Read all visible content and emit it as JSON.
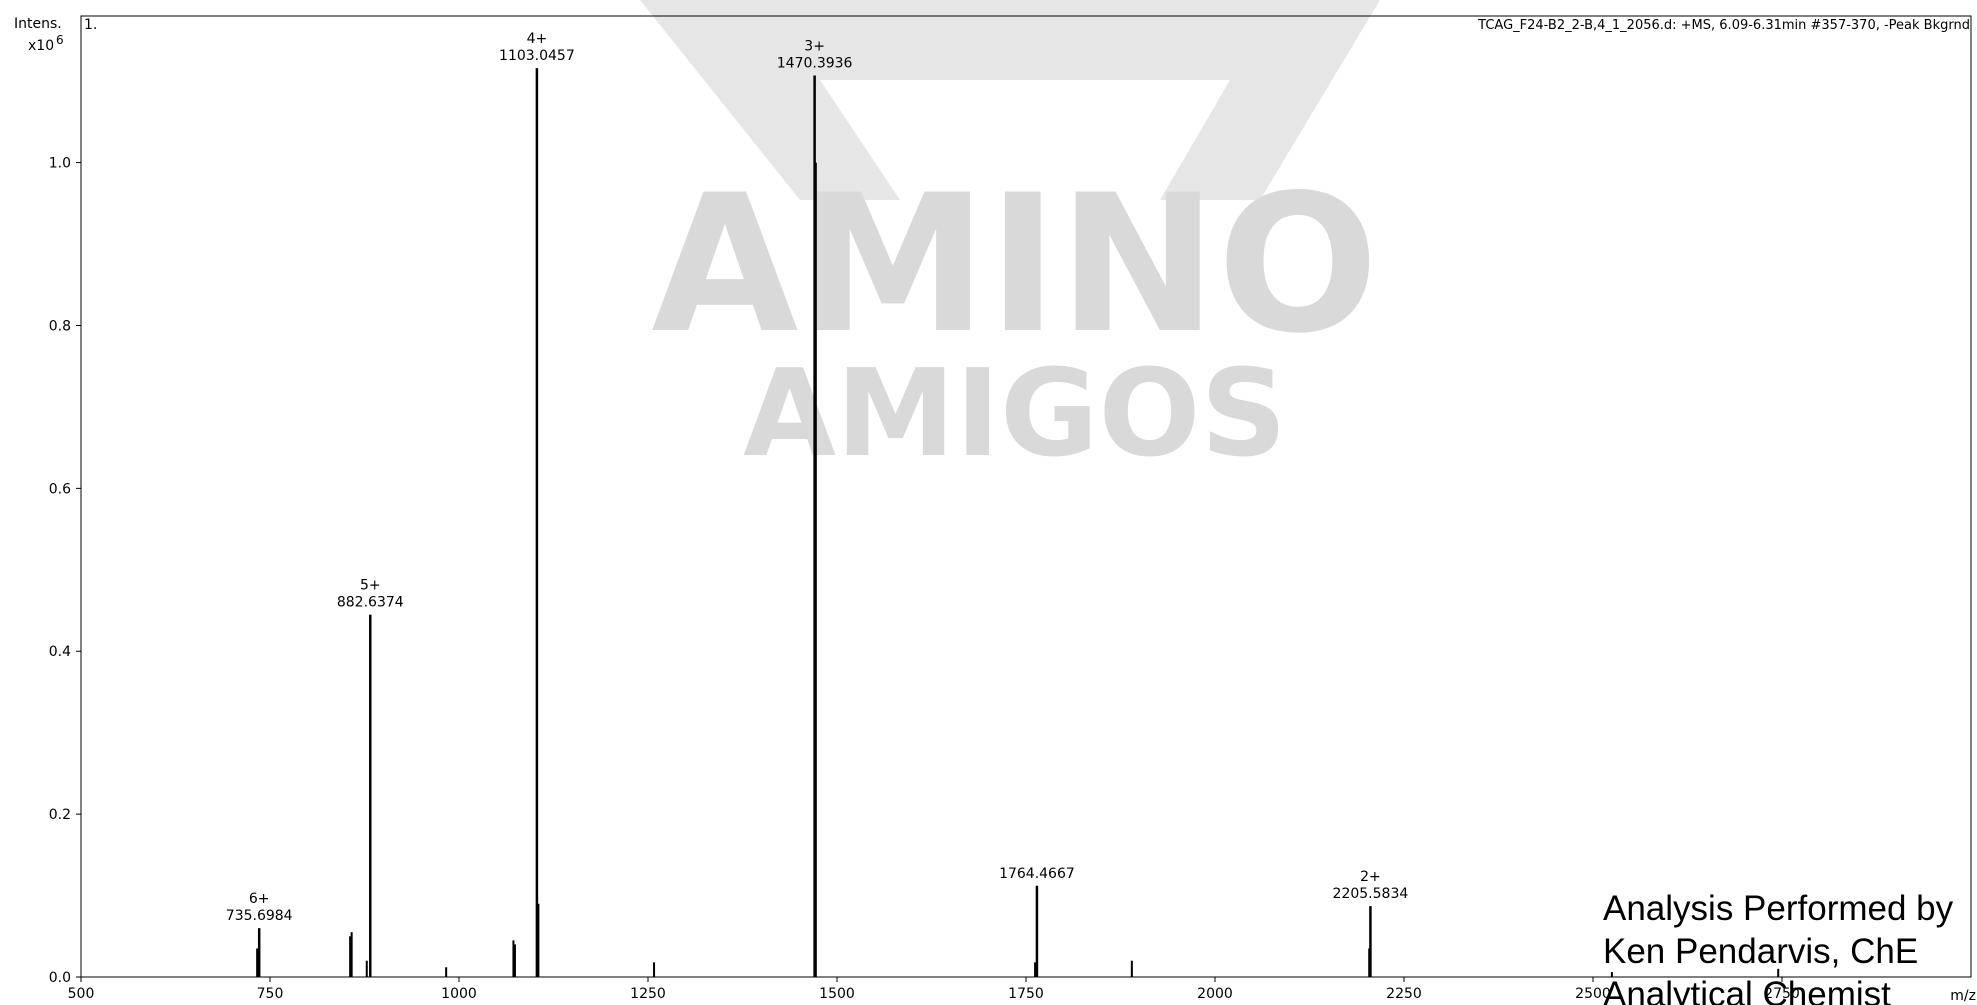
{
  "chart_data": {
    "type": "stem",
    "header": "TCAG_F24-B2_2-B,4_1_2056.d: +MS, 6.09-6.31min #357-370, -Peak Bkgrnd",
    "trace_label": "1.",
    "y_label": "Intens.",
    "y_multiplier": "x10",
    "y_exponent": "6",
    "x_label": "m/z",
    "color": "#000000",
    "xlim": [
      500,
      3000
    ],
    "ylim": [
      0,
      1.18
    ],
    "xticks": [
      500,
      750,
      1000,
      1250,
      1500,
      1750,
      2000,
      2250,
      2500,
      2750
    ],
    "yticks": [
      {
        "value": 0,
        "label": "0.0"
      },
      0.2,
      0.4,
      0.6,
      0.8,
      {
        "value": 1,
        "label": "1.0"
      }
    ],
    "peaks": {
      "x": [
        735.6984,
        882.6374,
        1103.0457,
        1470.3936,
        1764.4667,
        2205.5834
      ],
      "values": [
        0.06,
        0.445,
        1.116,
        1.107,
        0.112,
        0.087
      ],
      "charges": [
        "6+",
        "5+",
        "4+",
        "3+",
        null,
        "2+"
      ]
    },
    "minor_peaks": {
      "x": [
        733,
        856,
        858,
        878,
        983,
        1072,
        1074,
        1105,
        1258,
        1472,
        1762,
        1890,
        2204,
        2525,
        2745
      ],
      "values": [
        0.035,
        0.05,
        0.055,
        0.02,
        0.012,
        0.045,
        0.04,
        0.09,
        0.018,
        1.0,
        0.018,
        0.02,
        0.035,
        0.006,
        0.01
      ]
    },
    "watermark": [
      "AMINO",
      "AMIGOS"
    ],
    "credit": [
      "Analysis Performed by",
      "Ken Pendarvis, ChE",
      "Analytical Chemist"
    ]
  }
}
